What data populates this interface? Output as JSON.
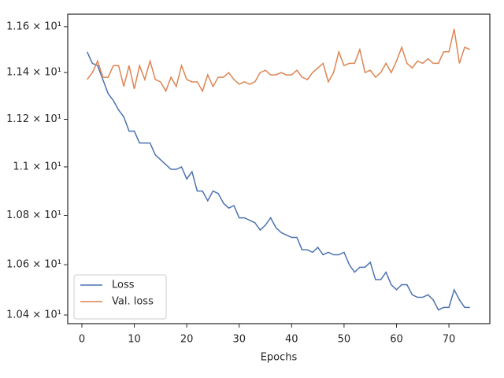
{
  "chart_data": {
    "type": "line",
    "xlabel": "Epochs",
    "x": [
      1,
      2,
      3,
      4,
      5,
      6,
      7,
      8,
      9,
      10,
      11,
      12,
      13,
      14,
      15,
      16,
      17,
      18,
      19,
      20,
      21,
      22,
      23,
      24,
      25,
      26,
      27,
      28,
      29,
      30,
      31,
      32,
      33,
      34,
      35,
      36,
      37,
      38,
      39,
      40,
      41,
      42,
      43,
      44,
      45,
      46,
      47,
      48,
      49,
      50,
      51,
      52,
      53,
      54,
      55,
      56,
      57,
      58,
      59,
      60,
      61,
      62,
      63,
      64,
      65,
      66,
      67,
      68,
      69,
      70,
      71,
      72,
      73,
      74
    ],
    "series": [
      {
        "name": "Loss",
        "color": "#4c72b0",
        "values": [
          11.49,
          11.44,
          11.43,
          11.37,
          11.31,
          11.28,
          11.24,
          11.21,
          11.15,
          11.15,
          11.1,
          11.1,
          11.1,
          11.05,
          11.03,
          11.01,
          10.99,
          10.99,
          11.0,
          10.95,
          10.98,
          10.9,
          10.9,
          10.86,
          10.9,
          10.89,
          10.85,
          10.83,
          10.84,
          10.79,
          10.79,
          10.78,
          10.77,
          10.74,
          10.76,
          10.79,
          10.75,
          10.73,
          10.72,
          10.71,
          10.71,
          10.66,
          10.66,
          10.65,
          10.67,
          10.64,
          10.65,
          10.64,
          10.64,
          10.65,
          10.6,
          10.57,
          10.59,
          10.59,
          10.61,
          10.54,
          10.54,
          10.57,
          10.52,
          10.5,
          10.52,
          10.52,
          10.48,
          10.47,
          10.47,
          10.48,
          10.46,
          10.42,
          10.43,
          10.43,
          10.5,
          10.46,
          10.43,
          10.43
        ]
      },
      {
        "name": "Val. loss",
        "color": "#dd8452",
        "values": [
          11.37,
          11.4,
          11.45,
          11.38,
          11.38,
          11.43,
          11.43,
          11.34,
          11.43,
          11.33,
          11.43,
          11.37,
          11.45,
          11.37,
          11.36,
          11.32,
          11.38,
          11.34,
          11.43,
          11.37,
          11.36,
          11.36,
          11.32,
          11.39,
          11.34,
          11.38,
          11.38,
          11.4,
          11.37,
          11.35,
          11.36,
          11.35,
          11.36,
          11.4,
          11.41,
          11.39,
          11.39,
          11.4,
          11.39,
          11.39,
          11.41,
          11.38,
          11.37,
          11.4,
          11.42,
          11.44,
          11.36,
          11.4,
          11.49,
          11.43,
          11.44,
          11.44,
          11.5,
          11.4,
          11.41,
          11.38,
          11.4,
          11.44,
          11.4,
          11.45,
          11.51,
          11.44,
          11.42,
          11.45,
          11.44,
          11.46,
          11.44,
          11.44,
          11.49,
          11.49,
          11.59,
          11.44,
          11.51,
          11.5
        ]
      }
    ],
    "xlim": [
      -2.7,
      77.8
    ],
    "xticks": [
      0,
      10,
      20,
      30,
      40,
      50,
      60,
      70
    ],
    "ylim": [
      10.366,
      11.655
    ],
    "yscale": "log",
    "yticks": [
      {
        "value": 10.4,
        "label": "1.04 × 10¹"
      },
      {
        "value": 10.6,
        "label": "1.06 × 10¹"
      },
      {
        "value": 10.8,
        "label": "1.08 × 10¹"
      },
      {
        "value": 11.0,
        "label": "1.1 × 10¹"
      },
      {
        "value": 11.2,
        "label": "1.12 × 10¹"
      },
      {
        "value": 11.4,
        "label": "1.14 × 10¹"
      },
      {
        "value": 11.6,
        "label": "1.16 × 10¹"
      }
    ],
    "grid": false,
    "legend": "lower left"
  }
}
